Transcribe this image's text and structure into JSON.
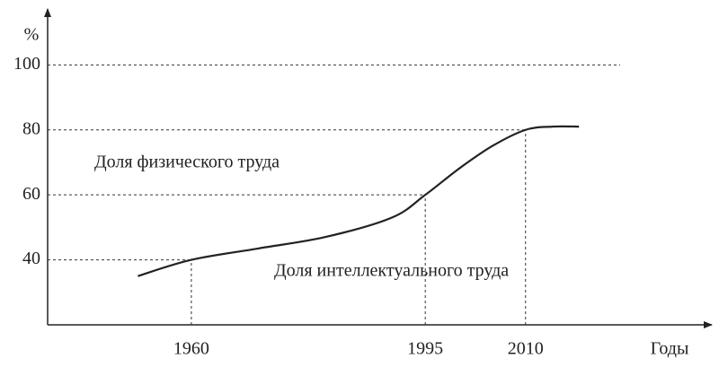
{
  "chart_data": {
    "type": "line",
    "y_label": "%",
    "x_label": "Годы",
    "annotations": [
      "Доля физического труда",
      "Доля интеллектуального труда"
    ],
    "x": [
      1952,
      1960,
      1970,
      1980,
      1990,
      1995,
      2000,
      2005,
      2010,
      2014,
      2018
    ],
    "series": [
      {
        "name": "Доля интеллектуального труда",
        "color": "#222222",
        "values": [
          35,
          40,
          43.5,
          47,
          53,
          60,
          68,
          75,
          80,
          81,
          81
        ]
      }
    ],
    "xlim": [
      1938.5,
      2037.6
    ],
    "xticks": [
      1960,
      1995,
      2010
    ],
    "ylim": [
      20,
      115
    ],
    "yticks": [
      40,
      60,
      80,
      100
    ]
  }
}
